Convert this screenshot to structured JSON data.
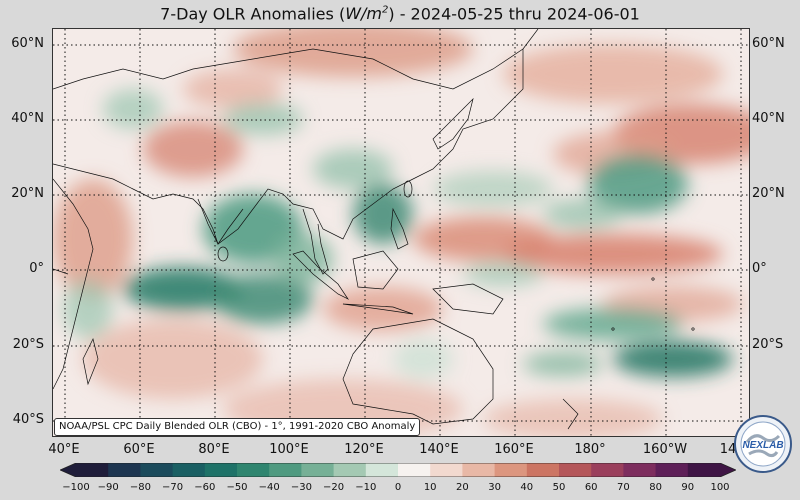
{
  "title": {
    "prefix": "7-Day OLR Anomalies (",
    "unit_base": "W/m",
    "unit_exp": "2",
    "suffix": ") - 2024-05-25 thru 2024-06-01"
  },
  "lat_labels": [
    "60°N",
    "40°N",
    "20°N",
    "0°",
    "20°S",
    "40°S"
  ],
  "lon_labels": [
    "40°E",
    "60°E",
    "80°E",
    "100°E",
    "120°E",
    "140°E",
    "160°E",
    "180°",
    "160°W",
    "14"
  ],
  "source_text": "NOAA/PSL CPC Daily Blended OLR (CBO) - 1°, 1991-2020 CBO Anomaly",
  "colorbar": {
    "ticks": [
      "−100",
      "−90",
      "−80",
      "−70",
      "−60",
      "−50",
      "−40",
      "−30",
      "−20",
      "−10",
      "0",
      "10",
      "20",
      "30",
      "40",
      "50",
      "60",
      "70",
      "80",
      "90",
      "100"
    ],
    "colors": [
      "#1f1d3a",
      "#1d3550",
      "#1b4b5c",
      "#1a5f63",
      "#1e7268",
      "#2f856f",
      "#4f9a80",
      "#76b096",
      "#a4c9b3",
      "#d4e6da",
      "#f6f2ef",
      "#f2d9cf",
      "#e8b8a6",
      "#dc967f",
      "#cc7563",
      "#b45659",
      "#9a3f5c",
      "#7d2d5e",
      "#5e1f58",
      "#3f1545"
    ]
  },
  "logo": {
    "text": "NEXLAB"
  },
  "colors": {
    "wet": "#2a7f6a",
    "dry": "#d98674",
    "neutral": "#f3ecea"
  }
}
